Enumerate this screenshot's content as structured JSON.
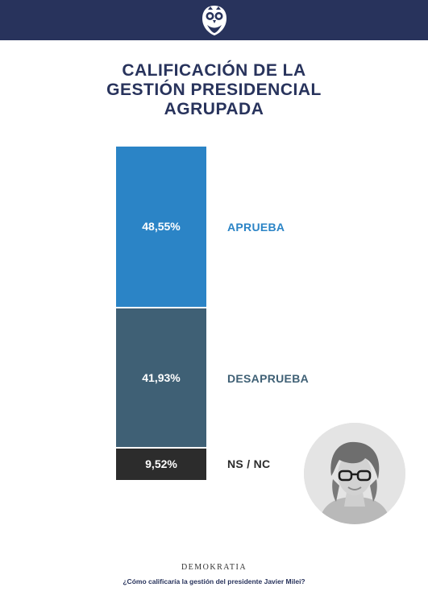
{
  "header": {
    "logo_icon": "owl-icon"
  },
  "title_lines": [
    "CALIFICACIÓN DE LA",
    "GESTIÓN PRESIDENCIAL",
    "AGRUPADA"
  ],
  "chart_data": {
    "type": "bar",
    "stacked": true,
    "title": "CALIFICACIÓN DE LA GESTIÓN PRESIDENCIAL AGRUPADA",
    "categories": [
      "APRUEBA",
      "DESAPRUEBA",
      "NS / NC"
    ],
    "values": [
      48.55,
      41.93,
      9.52
    ],
    "value_labels": [
      "48,55%",
      "41,93%",
      "9,52%"
    ],
    "colors": [
      "#2b84c6",
      "#3f6075",
      "#2c2c2c"
    ],
    "label_colors": [
      "#2b84c6",
      "#3f6075",
      "#2c2c2c"
    ],
    "unit": "%"
  },
  "portrait": {
    "icon": "portrait-icon"
  },
  "footer": {
    "brand": "DEMOKRATIA",
    "question": "¿Cómo calificaría la gestión del presidente Javier Milei?"
  }
}
